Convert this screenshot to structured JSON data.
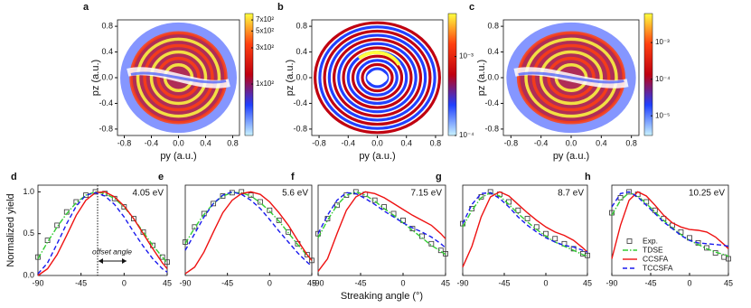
{
  "chart_data": [
    {
      "type": "image",
      "label": "a",
      "style": "filled",
      "xlabel": "py (a.u.)",
      "ylabel": "pz (a.u.)",
      "xlim": [
        -0.9,
        0.9
      ],
      "ylim": [
        -0.9,
        0.9
      ],
      "xticks": [
        -0.8,
        -0.4,
        {
          "value": 0,
          "label": "0.0"
        },
        0.4,
        0.8
      ],
      "yticks": [
        -0.8,
        -0.4,
        {
          "value": 0,
          "label": "0.0"
        },
        0.4,
        0.8
      ],
      "colorbar": {
        "scale": "log",
        "lim": [
          21,
          850
        ],
        "colors": [
          "#c8f2ff",
          "#2040ff",
          "#c00010",
          "#ff4010",
          "#ffff40"
        ],
        "ticks": [
          {
            "value": 100,
            "label": "1x10²"
          },
          {
            "value": 300,
            "label": "3x10²"
          },
          {
            "value": 500,
            "label": "5x10²"
          },
          {
            "value": 700,
            "label": "7x10²"
          }
        ]
      }
    },
    {
      "type": "image",
      "label": "b",
      "style": "rings",
      "xlabel": "py (a.u.)",
      "ylabel": "pz (a.u.)",
      "xlim": [
        -0.9,
        0.9
      ],
      "ylim": [
        -0.9,
        0.9
      ],
      "xticks": [
        -0.8,
        -0.4,
        {
          "value": 0,
          "label": "0.0"
        },
        0.4,
        0.8
      ],
      "yticks": [
        -0.8,
        -0.4,
        {
          "value": 0,
          "label": "0.0"
        },
        0.4,
        0.8
      ],
      "colorbar": {
        "scale": "log",
        "lim": [
          0.0001,
          0.0035
        ],
        "colors": [
          "#c8f2ff",
          "#2040ff",
          "#c00010",
          "#ff4010",
          "#ffff40"
        ],
        "ticks": [
          {
            "value": 0.0001,
            "label": "10⁻⁴"
          },
          {
            "value": 0.001,
            "label": "10⁻³"
          }
        ]
      }
    },
    {
      "type": "image",
      "label": "c",
      "style": "filled",
      "xlabel": "py (a.u.)",
      "ylabel": "pz (a.u.)",
      "xlim": [
        -0.9,
        0.9
      ],
      "ylim": [
        -0.9,
        0.9
      ],
      "xticks": [
        -0.8,
        -0.4,
        {
          "value": 0,
          "label": "0.0"
        },
        0.4,
        0.8
      ],
      "yticks": [
        -0.8,
        -0.4,
        {
          "value": 0,
          "label": "0.0"
        },
        0.4,
        0.8
      ],
      "colorbar": {
        "scale": "log",
        "lim": [
          2.9e-06,
          0.0062
        ],
        "colors": [
          "#c8f2ff",
          "#2040ff",
          "#c00010",
          "#ff4010",
          "#ffff40"
        ],
        "ticks": [
          {
            "value": 1e-05,
            "label": "10⁻⁵"
          },
          {
            "value": 0.0001,
            "label": "10⁻⁴"
          },
          {
            "value": 0.001,
            "label": "10⁻³"
          }
        ]
      }
    },
    {
      "type": "line",
      "label": "d",
      "annotation": "4.05 eV",
      "note": "offset angle",
      "ylabel": "Normalized yield",
      "xlim": [
        -90,
        45
      ],
      "ylim": [
        0,
        1.08
      ],
      "xticks": [
        -90,
        -45,
        0,
        45
      ],
      "yticks": [
        {
          "value": 0,
          "label": "0.0"
        },
        {
          "value": 0.5,
          "label": "0.5"
        },
        {
          "value": 1,
          "label": "1.0"
        }
      ],
      "x": [
        -90,
        -80,
        -70,
        -60,
        -50,
        -40,
        -30,
        -20,
        -10,
        0,
        10,
        20,
        30,
        40,
        45
      ],
      "series": [
        {
          "style": "markers",
          "color": "#333333",
          "values": [
            0.22,
            0.42,
            0.6,
            0.76,
            0.88,
            0.96,
            1.0,
            0.98,
            0.92,
            0.82,
            0.68,
            0.52,
            0.36,
            0.22,
            0.16
          ]
        },
        {
          "style": "dashdot",
          "color": "#33cc33",
          "values": [
            0.2,
            0.4,
            0.58,
            0.74,
            0.87,
            0.96,
            1.0,
            0.98,
            0.92,
            0.82,
            0.68,
            0.52,
            0.36,
            0.22,
            0.15
          ]
        },
        {
          "style": "solid",
          "color": "#ee1111",
          "values": [
            0.0,
            0.08,
            0.25,
            0.48,
            0.72,
            0.9,
            0.99,
            1.0,
            0.94,
            0.83,
            0.68,
            0.5,
            0.32,
            0.15,
            0.08
          ]
        },
        {
          "style": "dashed",
          "color": "#1a1aee",
          "values": [
            0.02,
            0.15,
            0.38,
            0.62,
            0.83,
            0.96,
            0.99,
            0.95,
            0.85,
            0.7,
            0.52,
            0.35,
            0.2,
            0.08,
            0.04
          ]
        }
      ]
    },
    {
      "type": "line",
      "label": "e",
      "annotation": "5.6 eV",
      "xlim": [
        -90,
        45
      ],
      "ylim": [
        0,
        1.08
      ],
      "xticks": [
        -90,
        -45,
        0,
        45
      ],
      "x": [
        -90,
        -80,
        -70,
        -60,
        -50,
        -40,
        -30,
        -20,
        -10,
        0,
        10,
        20,
        30,
        40,
        45
      ],
      "series": [
        {
          "style": "markers",
          "color": "#333333",
          "values": [
            0.4,
            0.58,
            0.74,
            0.86,
            0.95,
            0.99,
            1.0,
            0.96,
            0.88,
            0.78,
            0.66,
            0.52,
            0.38,
            0.25,
            0.18
          ]
        },
        {
          "style": "dashdot",
          "color": "#33cc33",
          "values": [
            0.38,
            0.57,
            0.73,
            0.86,
            0.95,
            0.99,
            0.99,
            0.95,
            0.87,
            0.77,
            0.65,
            0.51,
            0.37,
            0.24,
            0.18
          ]
        },
        {
          "style": "solid",
          "color": "#ee1111",
          "values": [
            0.02,
            0.1,
            0.28,
            0.52,
            0.75,
            0.9,
            0.98,
            1.0,
            0.97,
            0.88,
            0.75,
            0.6,
            0.42,
            0.25,
            0.18
          ]
        },
        {
          "style": "dashed",
          "color": "#1a1aee",
          "values": [
            0.3,
            0.5,
            0.7,
            0.86,
            0.96,
            1.0,
            0.97,
            0.9,
            0.8,
            0.67,
            0.53,
            0.4,
            0.27,
            0.16,
            0.11
          ]
        }
      ]
    },
    {
      "type": "line",
      "label": "f",
      "annotation": "7.15 eV",
      "xlabel": "Streaking angle (°)",
      "xlim": [
        -90,
        45
      ],
      "ylim": [
        0,
        1.08
      ],
      "xticks": [
        -90,
        -45,
        0,
        45
      ],
      "x": [
        -90,
        -80,
        -70,
        -60,
        -50,
        -40,
        -30,
        -20,
        -10,
        0,
        10,
        20,
        30,
        40,
        45
      ],
      "series": [
        {
          "style": "markers",
          "color": "#333333",
          "values": [
            0.5,
            0.68,
            0.84,
            0.96,
            1.0,
            0.97,
            0.9,
            0.82,
            0.74,
            0.66,
            0.56,
            0.47,
            0.38,
            0.3,
            0.26
          ]
        },
        {
          "style": "dashdot",
          "color": "#33cc33",
          "values": [
            0.45,
            0.66,
            0.84,
            0.96,
            1.0,
            0.96,
            0.89,
            0.8,
            0.72,
            0.63,
            0.54,
            0.45,
            0.36,
            0.29,
            0.25
          ]
        },
        {
          "style": "solid",
          "color": "#ee1111",
          "values": [
            0.05,
            0.2,
            0.5,
            0.78,
            0.94,
            1.0,
            0.98,
            0.93,
            0.86,
            0.79,
            0.72,
            0.66,
            0.6,
            0.5,
            0.44
          ]
        },
        {
          "style": "dashed",
          "color": "#1a1aee",
          "values": [
            0.5,
            0.72,
            0.9,
            0.99,
            0.98,
            0.92,
            0.85,
            0.77,
            0.7,
            0.63,
            0.57,
            0.52,
            0.46,
            0.38,
            0.33
          ]
        }
      ]
    },
    {
      "type": "line",
      "label": "g",
      "annotation": "8.7 eV",
      "xlim": [
        -90,
        45
      ],
      "ylim": [
        0,
        1.08
      ],
      "xticks": [
        -90,
        -45,
        0,
        45
      ],
      "x": [
        -90,
        -80,
        -70,
        -60,
        -50,
        -40,
        -30,
        -20,
        -10,
        0,
        10,
        20,
        30,
        40,
        45
      ],
      "series": [
        {
          "style": "markers",
          "color": "#333333",
          "values": [
            0.62,
            0.8,
            0.94,
            1.0,
            0.97,
            0.88,
            0.78,
            0.68,
            0.58,
            0.5,
            0.44,
            0.38,
            0.32,
            0.26,
            0.24
          ]
        },
        {
          "style": "dashdot",
          "color": "#33cc33",
          "values": [
            0.58,
            0.78,
            0.93,
            0.99,
            0.95,
            0.85,
            0.74,
            0.64,
            0.55,
            0.47,
            0.4,
            0.35,
            0.3,
            0.25,
            0.23
          ]
        },
        {
          "style": "solid",
          "color": "#ee1111",
          "values": [
            0.1,
            0.35,
            0.7,
            0.94,
            1.0,
            0.95,
            0.85,
            0.75,
            0.66,
            0.58,
            0.52,
            0.48,
            0.42,
            0.33,
            0.28
          ]
        },
        {
          "style": "dashed",
          "color": "#1a1aee",
          "values": [
            0.62,
            0.85,
            0.98,
            0.99,
            0.92,
            0.82,
            0.7,
            0.6,
            0.52,
            0.45,
            0.4,
            0.36,
            0.34,
            0.3,
            0.28
          ]
        }
      ]
    },
    {
      "type": "line",
      "label": "h",
      "annotation": "10.25 eV",
      "legend": "lower left",
      "xlim": [
        -90,
        45
      ],
      "ylim": [
        0,
        1.08
      ],
      "xticks": [
        -90,
        -45,
        0,
        45
      ],
      "x": [
        -90,
        -80,
        -70,
        -60,
        -50,
        -40,
        -30,
        -20,
        -10,
        0,
        10,
        20,
        30,
        40,
        45
      ],
      "series": [
        {
          "name": "Exp.",
          "style": "markers",
          "color": "#333333",
          "values": [
            0.75,
            0.93,
            1.0,
            0.97,
            0.88,
            0.78,
            0.68,
            0.6,
            0.52,
            0.45,
            0.39,
            0.33,
            0.27,
            0.22,
            0.2
          ]
        },
        {
          "name": "TDSE",
          "style": "dashdot",
          "color": "#33cc33",
          "values": [
            0.72,
            0.9,
            0.99,
            0.95,
            0.86,
            0.76,
            0.66,
            0.57,
            0.49,
            0.42,
            0.37,
            0.32,
            0.28,
            0.25,
            0.23
          ]
        },
        {
          "name": "CCSFA",
          "style": "solid",
          "color": "#ee1111",
          "values": [
            0.2,
            0.6,
            0.9,
            1.0,
            0.95,
            0.84,
            0.72,
            0.63,
            0.58,
            0.55,
            0.54,
            0.52,
            0.46,
            0.37,
            0.32
          ]
        },
        {
          "name": "TCCSFA",
          "style": "dashed",
          "color": "#1a1aee",
          "values": [
            0.82,
            0.98,
            1.0,
            0.94,
            0.84,
            0.74,
            0.64,
            0.56,
            0.48,
            0.42,
            0.39,
            0.38,
            0.37,
            0.36,
            0.35
          ]
        }
      ]
    }
  ]
}
